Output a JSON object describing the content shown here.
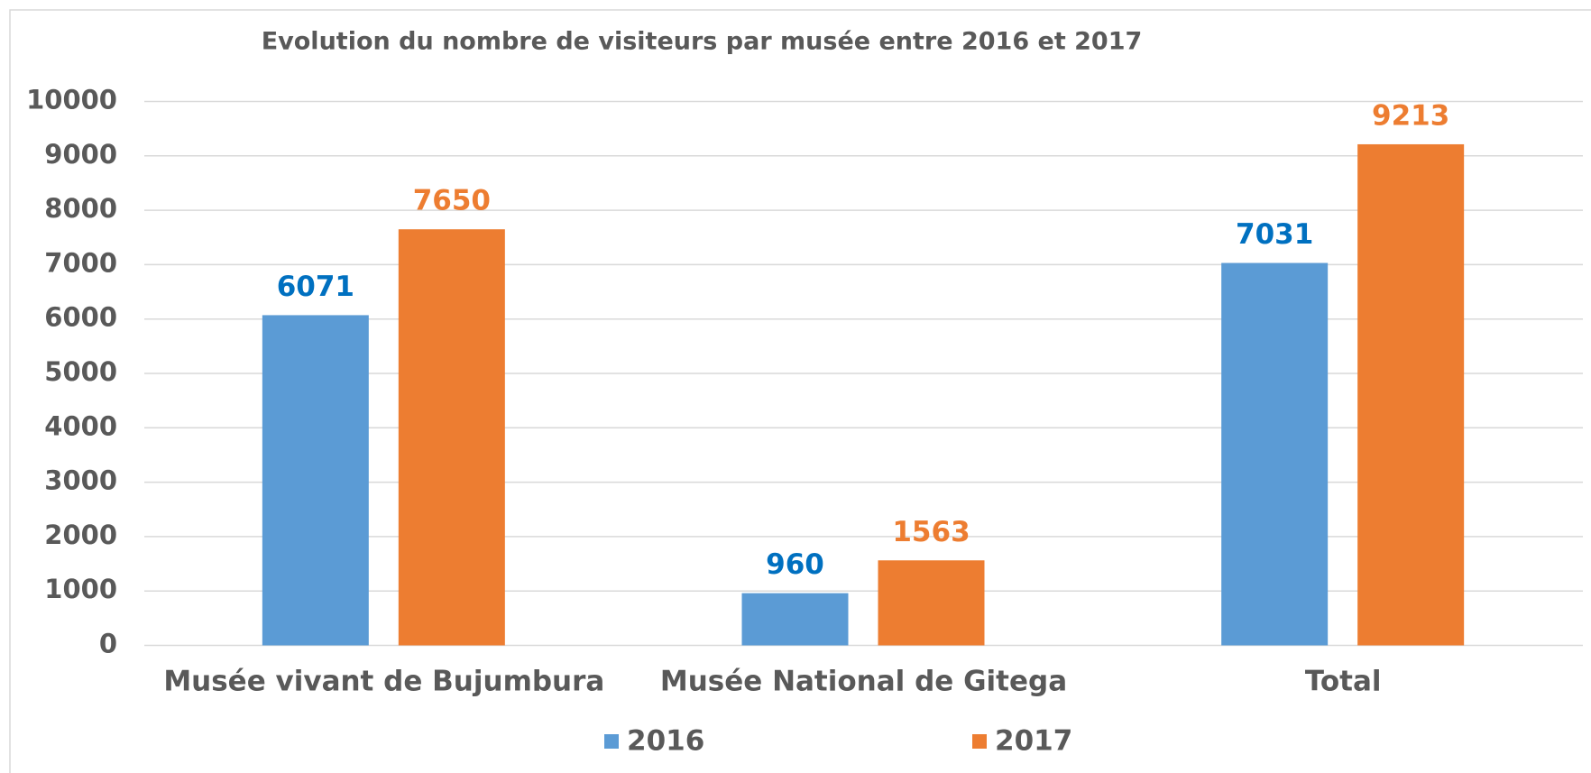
{
  "chart_data": {
    "type": "bar",
    "title": "Evolution du nombre de visiteurs par musée entre 2016 et 2017",
    "categories": [
      "Musée vivant de Bujumbura",
      "Musée National de Gitega",
      "Total"
    ],
    "series": [
      {
        "name": "2016",
        "color": "#5b9bd5",
        "label_color": "#0070c0",
        "values": [
          6071,
          960,
          7031
        ]
      },
      {
        "name": "2017",
        "color": "#ed7d31",
        "label_color": "#ed7d31",
        "values": [
          7650,
          1563,
          9213
        ]
      }
    ],
    "ylim": [
      0,
      10000
    ],
    "yticks": [
      0,
      1000,
      2000,
      3000,
      4000,
      5000,
      6000,
      7000,
      8000,
      9000,
      10000
    ],
    "grid": true,
    "legend": "bottom"
  }
}
